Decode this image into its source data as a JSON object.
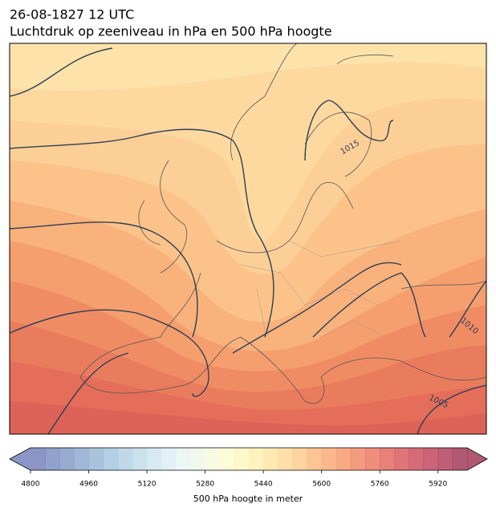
{
  "header": {
    "title_line1": "26-08-1827 12 UTC",
    "title_line2": "Luchtdruk op zeeniveau in hPa en 500 hPa hoogte"
  },
  "map": {
    "contour_labels": [
      "1015",
      "1010",
      "1005"
    ]
  },
  "colorbar": {
    "label": "500 hPa hoogte in meter",
    "lim": [
      4800,
      6000
    ],
    "ticks": [
      4800,
      4960,
      5120,
      5280,
      5440,
      5600,
      5760,
      5920
    ],
    "colors": [
      "#6672b4",
      "#6c80bb",
      "#7590c2",
      "#80a0c8",
      "#8cafd0",
      "#9bbfd9",
      "#aacbe0",
      "#bad7e8",
      "#cae3ef",
      "#d9ecf3",
      "#e6f3f1",
      "#eef6e6",
      "#f5f9d8",
      "#fbfbca",
      "#fdf5b8",
      "#fdedaa",
      "#fde29c",
      "#fdd48e",
      "#fcc47f",
      "#fab272",
      "#f8a066",
      "#f58d5c",
      "#ef7a54",
      "#e8684f",
      "#df574c",
      "#d4474b",
      "#c73a4b",
      "#b9304b",
      "#a8294a",
      "#962247"
    ]
  }
}
